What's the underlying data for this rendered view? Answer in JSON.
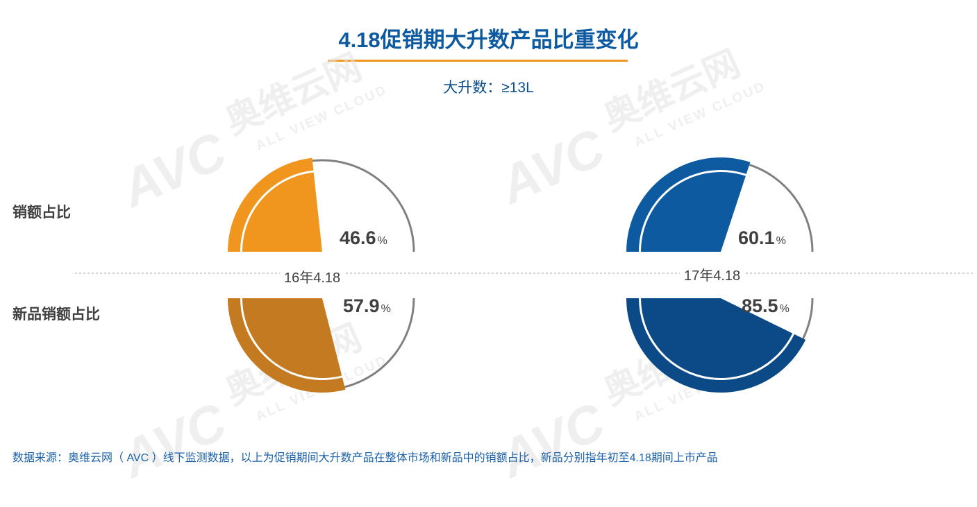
{
  "title": "4.18促销期大升数产品比重变化",
  "subtitle": "大升数：≥13L",
  "row_labels": {
    "top": "销额占比",
    "bottom": "新品销额占比"
  },
  "percent_symbol": "%",
  "source_note": "数据来源：奥维云网（ AVC ）线下监测数据，以上为促销期间大升数产品在整体市场和新品中的销额占比，新品分别指年初至4.18期间上市产品",
  "watermark": {
    "brand": "AVC",
    "cn": "奥维云网",
    "en": "ALL VIEW CLOUD"
  },
  "colors": {
    "orange": "#f0961e",
    "dark_orange": "#c47a20",
    "blue": "#0d5aa0",
    "dark_blue": "#0b4a86",
    "ring": "#808080",
    "text": "#404040"
  },
  "chart_data": [
    {
      "type": "pie",
      "category": "16年4.18",
      "series": [
        {
          "name": "销额占比",
          "value": 46.6,
          "label": "46.6"
        },
        {
          "name": "新品销额占比",
          "value": 57.9,
          "label": "57.9"
        }
      ]
    },
    {
      "type": "pie",
      "category": "17年4.18",
      "series": [
        {
          "name": "销额占比",
          "value": 60.1,
          "label": "60.1"
        },
        {
          "name": "新品销额占比",
          "value": 85.5,
          "label": "85.5"
        }
      ]
    }
  ]
}
